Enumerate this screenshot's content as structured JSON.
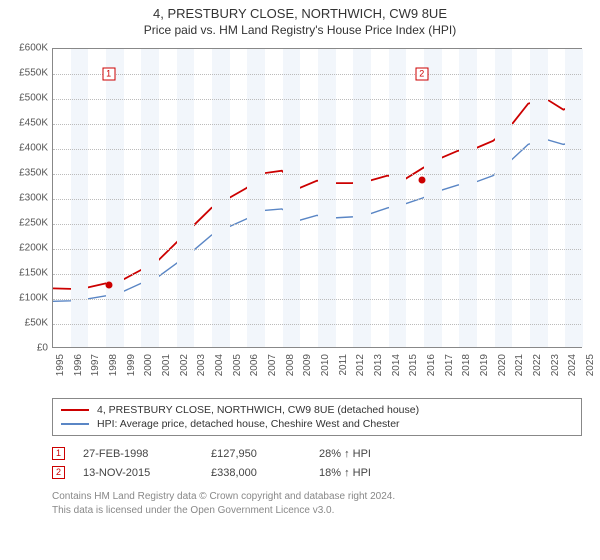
{
  "header": {
    "title": "4, PRESTBURY CLOSE, NORTHWICH, CW9 8UE",
    "subtitle": "Price paid vs. HM Land Registry's House Price Index (HPI)"
  },
  "chart": {
    "type": "line",
    "background_color": "#ffffff",
    "band_color": "#f2f6fb",
    "grid_color": "#bbbbbb",
    "border_color": "#888888",
    "y": {
      "min": 0,
      "max": 600000,
      "step": 50000,
      "prefix": "£",
      "suffix": "K",
      "divisor": 1000,
      "fontsize": 10,
      "label_color": "#555555"
    },
    "x": {
      "min": 1995,
      "max": 2025,
      "step": 1,
      "fontsize": 10,
      "label_color": "#555555"
    },
    "series": [
      {
        "name": "4, PRESTBURY CLOSE, NORTHWICH, CW9 8UE (detached house)",
        "color": "#cc0000",
        "line_width": 1.8,
        "points": [
          [
            1995,
            118000
          ],
          [
            1996,
            117000
          ],
          [
            1997,
            120000
          ],
          [
            1998,
            127950
          ],
          [
            1999,
            136000
          ],
          [
            2000,
            155000
          ],
          [
            2001,
            175000
          ],
          [
            2002,
            210000
          ],
          [
            2003,
            245000
          ],
          [
            2004,
            280000
          ],
          [
            2005,
            300000
          ],
          [
            2006,
            320000
          ],
          [
            2007,
            350000
          ],
          [
            2008,
            355000
          ],
          [
            2009,
            320000
          ],
          [
            2010,
            335000
          ],
          [
            2011,
            330000
          ],
          [
            2012,
            330000
          ],
          [
            2013,
            335000
          ],
          [
            2014,
            345000
          ],
          [
            2015,
            338000
          ],
          [
            2016,
            360000
          ],
          [
            2017,
            380000
          ],
          [
            2018,
            395000
          ],
          [
            2019,
            400000
          ],
          [
            2020,
            415000
          ],
          [
            2021,
            445000
          ],
          [
            2022,
            490000
          ],
          [
            2023,
            500000
          ],
          [
            2024,
            478000
          ],
          [
            2025,
            490000
          ]
        ]
      },
      {
        "name": "HPI: Average price, detached house, Cheshire West and Chester",
        "color": "#5a86c5",
        "line_width": 1.4,
        "points": [
          [
            1995,
            92000
          ],
          [
            1996,
            93000
          ],
          [
            1997,
            97000
          ],
          [
            1998,
            103000
          ],
          [
            1999,
            112000
          ],
          [
            2000,
            128000
          ],
          [
            2001,
            142000
          ],
          [
            2002,
            168000
          ],
          [
            2003,
            195000
          ],
          [
            2004,
            225000
          ],
          [
            2005,
            242000
          ],
          [
            2006,
            258000
          ],
          [
            2007,
            275000
          ],
          [
            2008,
            278000
          ],
          [
            2009,
            255000
          ],
          [
            2010,
            265000
          ],
          [
            2011,
            260000
          ],
          [
            2012,
            262000
          ],
          [
            2013,
            268000
          ],
          [
            2014,
            280000
          ],
          [
            2015,
            288000
          ],
          [
            2016,
            300000
          ],
          [
            2017,
            315000
          ],
          [
            2018,
            326000
          ],
          [
            2019,
            332000
          ],
          [
            2020,
            345000
          ],
          [
            2021,
            375000
          ],
          [
            2022,
            408000
          ],
          [
            2023,
            418000
          ],
          [
            2024,
            408000
          ],
          [
            2025,
            415000
          ]
        ]
      }
    ],
    "markers": [
      {
        "id": "1",
        "x": 1998.15,
        "y": 127950,
        "box_y": 550000
      },
      {
        "id": "2",
        "x": 2015.87,
        "y": 338000,
        "box_y": 550000
      }
    ]
  },
  "legend": {
    "rows": [
      {
        "color": "#cc0000",
        "label": "4, PRESTBURY CLOSE, NORTHWICH, CW9 8UE (detached house)"
      },
      {
        "color": "#5a86c5",
        "label": "HPI: Average price, detached house, Cheshire West and Chester"
      }
    ]
  },
  "data_points": [
    {
      "id": "1",
      "date": "27-FEB-1998",
      "price": "£127,950",
      "hpi": "28% ↑ HPI"
    },
    {
      "id": "2",
      "date": "13-NOV-2015",
      "price": "£338,000",
      "hpi": "18% ↑ HPI"
    }
  ],
  "attribution": {
    "line1": "Contains HM Land Registry data © Crown copyright and database right 2024.",
    "line2": "This data is licensed under the Open Government Licence v3.0."
  }
}
